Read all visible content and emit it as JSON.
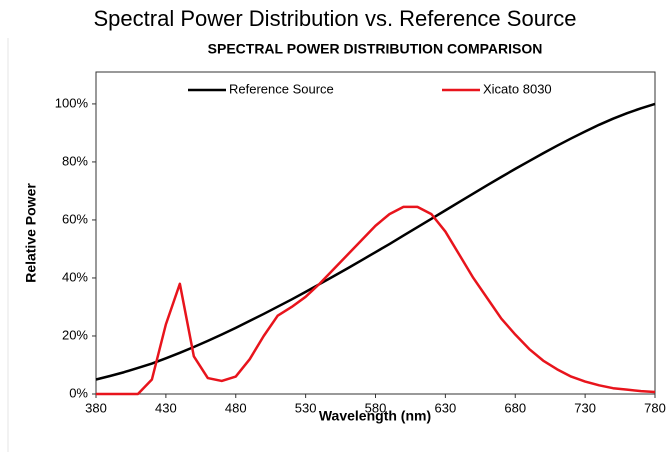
{
  "chart_data": {
    "type": "line",
    "page_title": "Spectral Power Distribution vs. Reference Source",
    "title": "SPECTRAL POWER DISTRIBUTION COMPARISON",
    "xlabel": "Wavelength (nm)",
    "ylabel": "Relative Power",
    "x": [
      380,
      390,
      400,
      410,
      420,
      430,
      440,
      450,
      460,
      470,
      480,
      490,
      500,
      510,
      520,
      530,
      540,
      550,
      560,
      570,
      580,
      590,
      600,
      610,
      620,
      630,
      640,
      650,
      660,
      670,
      680,
      690,
      700,
      710,
      720,
      730,
      740,
      750,
      760,
      770,
      780
    ],
    "series": [
      {
        "name": "Reference Source",
        "color": "#000000",
        "values": [
          5,
          6.2,
          7.5,
          9,
          10.5,
          12.3,
          14.2,
          16.2,
          18.3,
          20.5,
          22.8,
          25.2,
          27.6,
          30.1,
          32.6,
          35.2,
          37.9,
          40.6,
          43.3,
          46.1,
          48.9,
          51.7,
          54.6,
          57.5,
          60.4,
          63.3,
          66.2,
          69.1,
          72,
          74.8,
          77.6,
          80.3,
          83,
          85.6,
          88.1,
          90.5,
          92.8,
          94.9,
          96.8,
          98.5,
          100
        ]
      },
      {
        "name": "Xicato 8030",
        "color": "#e8141c",
        "values": [
          0,
          0,
          0,
          0,
          5,
          24,
          38,
          13,
          5.5,
          4.5,
          6,
          12,
          20,
          27,
          30,
          33.5,
          38,
          43,
          48,
          53,
          58,
          62,
          64.5,
          64.5,
          62,
          56,
          48,
          40,
          33,
          26,
          20.5,
          15.5,
          11.5,
          8.5,
          6,
          4.3,
          3,
          2,
          1.5,
          1,
          0.7
        ]
      }
    ],
    "xlim": [
      380,
      780
    ],
    "xticks": [
      380,
      430,
      480,
      530,
      580,
      630,
      680,
      730,
      780
    ],
    "ylim": [
      0,
      111
    ],
    "yticks": [
      {
        "value": 0,
        "label": "0%"
      },
      {
        "value": 20,
        "label": "20%"
      },
      {
        "value": 40,
        "label": "40%"
      },
      {
        "value": 60,
        "label": "60%"
      },
      {
        "value": 80,
        "label": "80%"
      },
      {
        "value": 100,
        "label": "100%"
      }
    ],
    "legend": "top",
    "grid": false
  }
}
